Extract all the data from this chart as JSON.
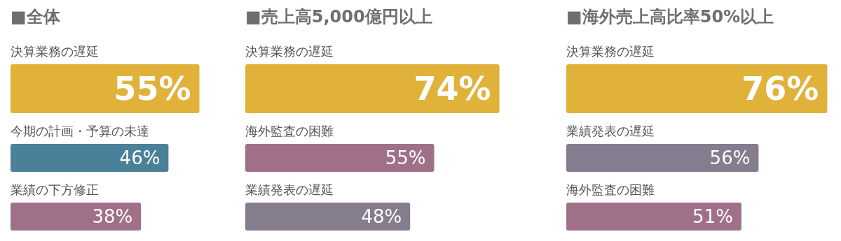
{
  "chart_data": [
    {
      "type": "bar",
      "orientation": "horizontal",
      "title": "■全体",
      "categories": [
        "決算業務の遅延",
        "今期の計画・予算の未達",
        "業績の下方修正"
      ],
      "values": [
        55,
        46,
        38
      ],
      "value_labels": [
        "55%",
        "46%",
        "38%"
      ],
      "colors": [
        "#e1b23a",
        "#4a8199",
        "#a07088"
      ]
    },
    {
      "type": "bar",
      "orientation": "horizontal",
      "title": "■売上高5,000億円以上",
      "categories": [
        "決算業務の遅延",
        "海外監査の困難",
        "業績発表の遅延"
      ],
      "values": [
        74,
        55,
        48
      ],
      "value_labels": [
        "74%",
        "55%",
        "48%"
      ],
      "colors": [
        "#e1b23a",
        "#a07088",
        "#857c8e"
      ]
    },
    {
      "type": "bar",
      "orientation": "horizontal",
      "title": "■海外売上高比率50%以上",
      "categories": [
        "決算業務の遅延",
        "業績発表の遅延",
        "海外監査の困難"
      ],
      "values": [
        76,
        56,
        51
      ],
      "value_labels": [
        "76%",
        "56%",
        "51%"
      ],
      "colors": [
        "#e1b23a",
        "#857c8e",
        "#a07088"
      ]
    }
  ]
}
